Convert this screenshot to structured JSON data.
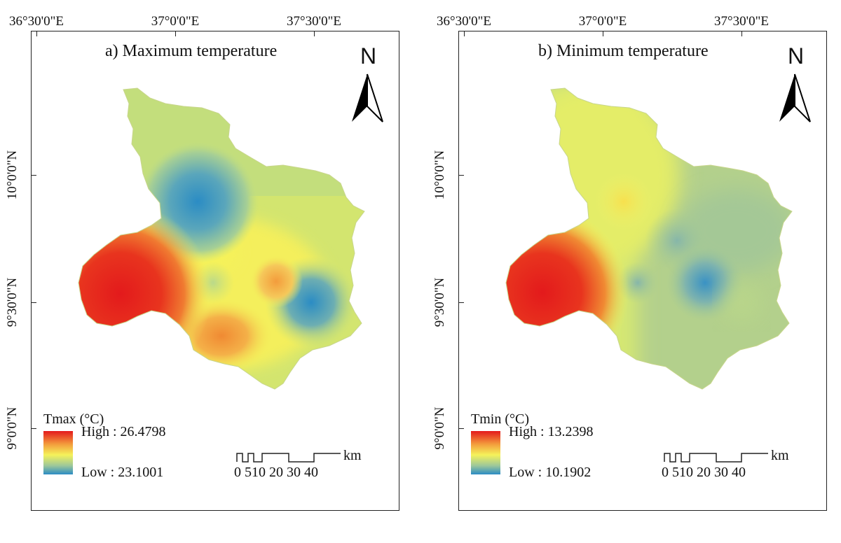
{
  "panels": [
    {
      "title": "a) Maximum temperature",
      "legend_title": "Tmax (°C)",
      "legend_high": "High : 26.4798",
      "legend_low": "Low : 23.1001",
      "high_value": 26.4798,
      "low_value": 23.1001
    },
    {
      "title": "b) Minimum temperature",
      "legend_title": "Tmin (°C)",
      "legend_high": "High : 13.2398",
      "legend_low": "Low : 10.1902",
      "high_value": 13.2398,
      "low_value": 10.1902
    }
  ],
  "longitude_labels": [
    "36°30'0\"E",
    "37°0'0\"E",
    "37°30'0\"E"
  ],
  "latitude_labels": [
    "10°0'0\"N",
    "9°30'0\"N",
    "9°0'0\"N"
  ],
  "north_letter": "N",
  "scale": {
    "unit": "km",
    "labels": "0 510  20  30  40"
  },
  "colors": {
    "high": "#e41a1c",
    "orange": "#f39c3c",
    "yellow": "#f5f25a",
    "yellow_green": "#c9e27a",
    "green": "#9cc79a",
    "low": "#2b8cc4"
  }
}
